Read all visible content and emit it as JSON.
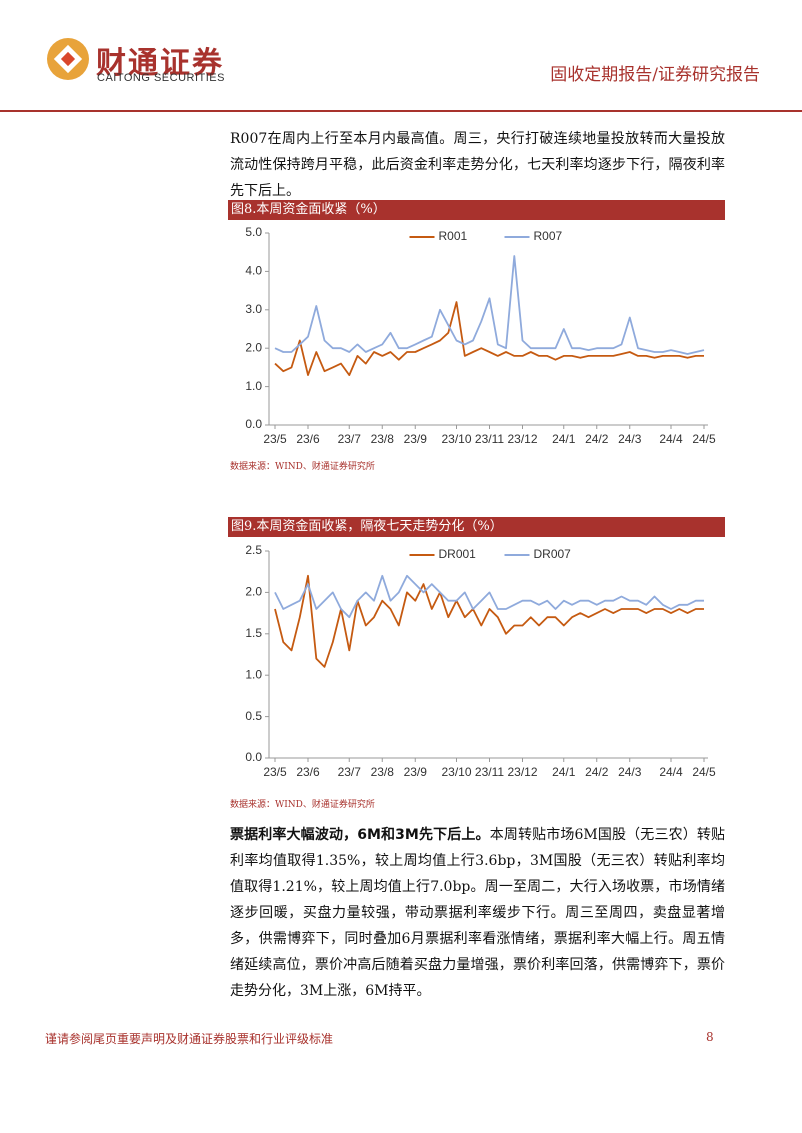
{
  "header": {
    "brand_cn": "财通证券",
    "brand_en": "CAITONG SECURITIES",
    "report_type": "固收定期报告/证券研究报告"
  },
  "paragraphs": [
    {
      "text": "R007在周内上行至本月内最高值。周三，央行打破连续地量投放转而大量投放流动性保持跨月平稳，此后资金利率走势分化，七天利率均逐步下行，隔夜利率先下后上。"
    },
    {
      "lead": "票据利率大幅波动，6M和3M先下后上。",
      "text": "本周转贴市场6M国股（无三农）转贴利率均值取得1.35%，较上周均值上行3.6bp，3M国股（无三农）转贴利率均值取得1.21%，较上周均值上行7.0bp。周一至周二，大行入场收票，市场情绪逐步回暖，买盘力量较强，带动票据利率缓步下行。周三至周四，卖盘显著增多，供需博弈下，同时叠加6月票据利率看涨情绪，票据利率大幅上行。周五情绪延续高位，票价冲高后随着买盘力量增强，票价利率回落，供需博弈下，票价走势分化，3M上涨，6M持平。"
    }
  ],
  "chart_data": [
    {
      "type": "line",
      "title": "图8.本周资金面收紧（%）",
      "source": "数据来源：WIND、财通证券研究所",
      "categories": [
        "23/5",
        null,
        null,
        null,
        "23/6",
        null,
        null,
        null,
        null,
        "23/7",
        null,
        null,
        null,
        "23/8",
        null,
        null,
        null,
        "23/9",
        null,
        null,
        null,
        null,
        "23/10",
        null,
        null,
        null,
        "23/11",
        null,
        null,
        null,
        "23/12",
        null,
        null,
        null,
        null,
        "24/1",
        null,
        null,
        null,
        "24/2",
        null,
        null,
        null,
        "24/3",
        null,
        null,
        null,
        null,
        "24/4",
        null,
        null,
        null,
        "24/5"
      ],
      "series": [
        {
          "name": "R001",
          "color": "#c55a11",
          "values": [
            1.6,
            1.4,
            1.5,
            2.2,
            1.3,
            1.9,
            1.4,
            1.5,
            1.6,
            1.3,
            1.8,
            1.6,
            1.9,
            1.8,
            1.9,
            1.7,
            1.9,
            1.9,
            2.0,
            2.1,
            2.2,
            2.4,
            3.2,
            1.8,
            1.9,
            2.0,
            1.9,
            1.8,
            1.9,
            1.8,
            1.8,
            1.9,
            1.8,
            1.8,
            1.7,
            1.8,
            1.8,
            1.75,
            1.8,
            1.8,
            1.8,
            1.8,
            1.85,
            1.9,
            1.8,
            1.8,
            1.75,
            1.8,
            1.8,
            1.8,
            1.75,
            1.8,
            1.8
          ]
        },
        {
          "name": "R007",
          "color": "#8faadc",
          "values": [
            2.0,
            1.9,
            1.9,
            2.1,
            2.3,
            3.1,
            2.2,
            2.0,
            2.0,
            1.9,
            2.1,
            1.9,
            2.0,
            2.1,
            2.4,
            2.0,
            2.0,
            2.1,
            2.2,
            2.3,
            3.0,
            2.6,
            2.2,
            2.1,
            2.2,
            2.7,
            3.3,
            2.1,
            2.0,
            4.4,
            2.2,
            2.0,
            2.0,
            2.0,
            2.0,
            2.5,
            2.0,
            2.0,
            1.95,
            2.0,
            2.0,
            2.0,
            2.1,
            2.8,
            2.0,
            1.95,
            1.9,
            1.9,
            1.95,
            1.9,
            1.85,
            1.9,
            1.95
          ]
        }
      ],
      "ylim": [
        0,
        5
      ],
      "yticks": [
        {
          "value": 0,
          "label": "0.0"
        },
        {
          "value": 1,
          "label": "1.0"
        },
        {
          "value": 2,
          "label": "2.0"
        },
        {
          "value": 3,
          "label": "3.0"
        },
        {
          "value": 4,
          "label": "4.0"
        },
        {
          "value": 5,
          "label": "5.0"
        }
      ],
      "legend": "top"
    },
    {
      "type": "line",
      "title": "图9.本周资金面收紧，隔夜七天走势分化（%）",
      "source": "数据来源：WIND、财通证券研究所",
      "categories": [
        "23/5",
        null,
        null,
        null,
        "23/6",
        null,
        null,
        null,
        null,
        "23/7",
        null,
        null,
        null,
        "23/8",
        null,
        null,
        null,
        "23/9",
        null,
        null,
        null,
        null,
        "23/10",
        null,
        null,
        null,
        "23/11",
        null,
        null,
        null,
        "23/12",
        null,
        null,
        null,
        null,
        "24/1",
        null,
        null,
        null,
        "24/2",
        null,
        null,
        null,
        "24/3",
        null,
        null,
        null,
        null,
        "24/4",
        null,
        null,
        null,
        "24/5"
      ],
      "series": [
        {
          "name": "DR001",
          "color": "#c55a11",
          "values": [
            1.8,
            1.4,
            1.3,
            1.7,
            2.2,
            1.2,
            1.1,
            1.4,
            1.8,
            1.3,
            1.9,
            1.6,
            1.7,
            1.9,
            1.8,
            1.6,
            2.0,
            1.9,
            2.1,
            1.8,
            2.0,
            1.7,
            1.9,
            1.7,
            1.8,
            1.6,
            1.8,
            1.7,
            1.5,
            1.6,
            1.6,
            1.7,
            1.6,
            1.7,
            1.7,
            1.6,
            1.7,
            1.75,
            1.7,
            1.75,
            1.8,
            1.75,
            1.8,
            1.8,
            1.8,
            1.75,
            1.8,
            1.8,
            1.75,
            1.8,
            1.75,
            1.8,
            1.8
          ]
        },
        {
          "name": "DR007",
          "color": "#8faadc",
          "values": [
            2.0,
            1.8,
            1.85,
            1.9,
            2.1,
            1.8,
            1.9,
            2.0,
            1.8,
            1.7,
            1.9,
            2.0,
            1.9,
            2.2,
            1.9,
            2.0,
            2.2,
            2.1,
            2.0,
            2.1,
            2.0,
            1.9,
            1.9,
            2.0,
            1.8,
            1.9,
            2.0,
            1.8,
            1.8,
            1.85,
            1.9,
            1.9,
            1.85,
            1.9,
            1.8,
            1.9,
            1.85,
            1.9,
            1.9,
            1.85,
            1.9,
            1.9,
            1.95,
            1.9,
            1.9,
            1.85,
            1.95,
            1.85,
            1.8,
            1.85,
            1.85,
            1.9,
            1.9
          ]
        }
      ],
      "ylim": [
        0,
        2.5
      ],
      "yticks": [
        {
          "value": 0,
          "label": "0.0"
        },
        0.5,
        {
          "value": 1,
          "label": "1.0"
        },
        1.5,
        {
          "value": 2,
          "label": "2.0"
        },
        2.5
      ],
      "legend": "top"
    }
  ],
  "footer": {
    "disclaimer": "谨请参阅尾页重要声明及财通证券股票和行业评级标准",
    "page": "8"
  }
}
